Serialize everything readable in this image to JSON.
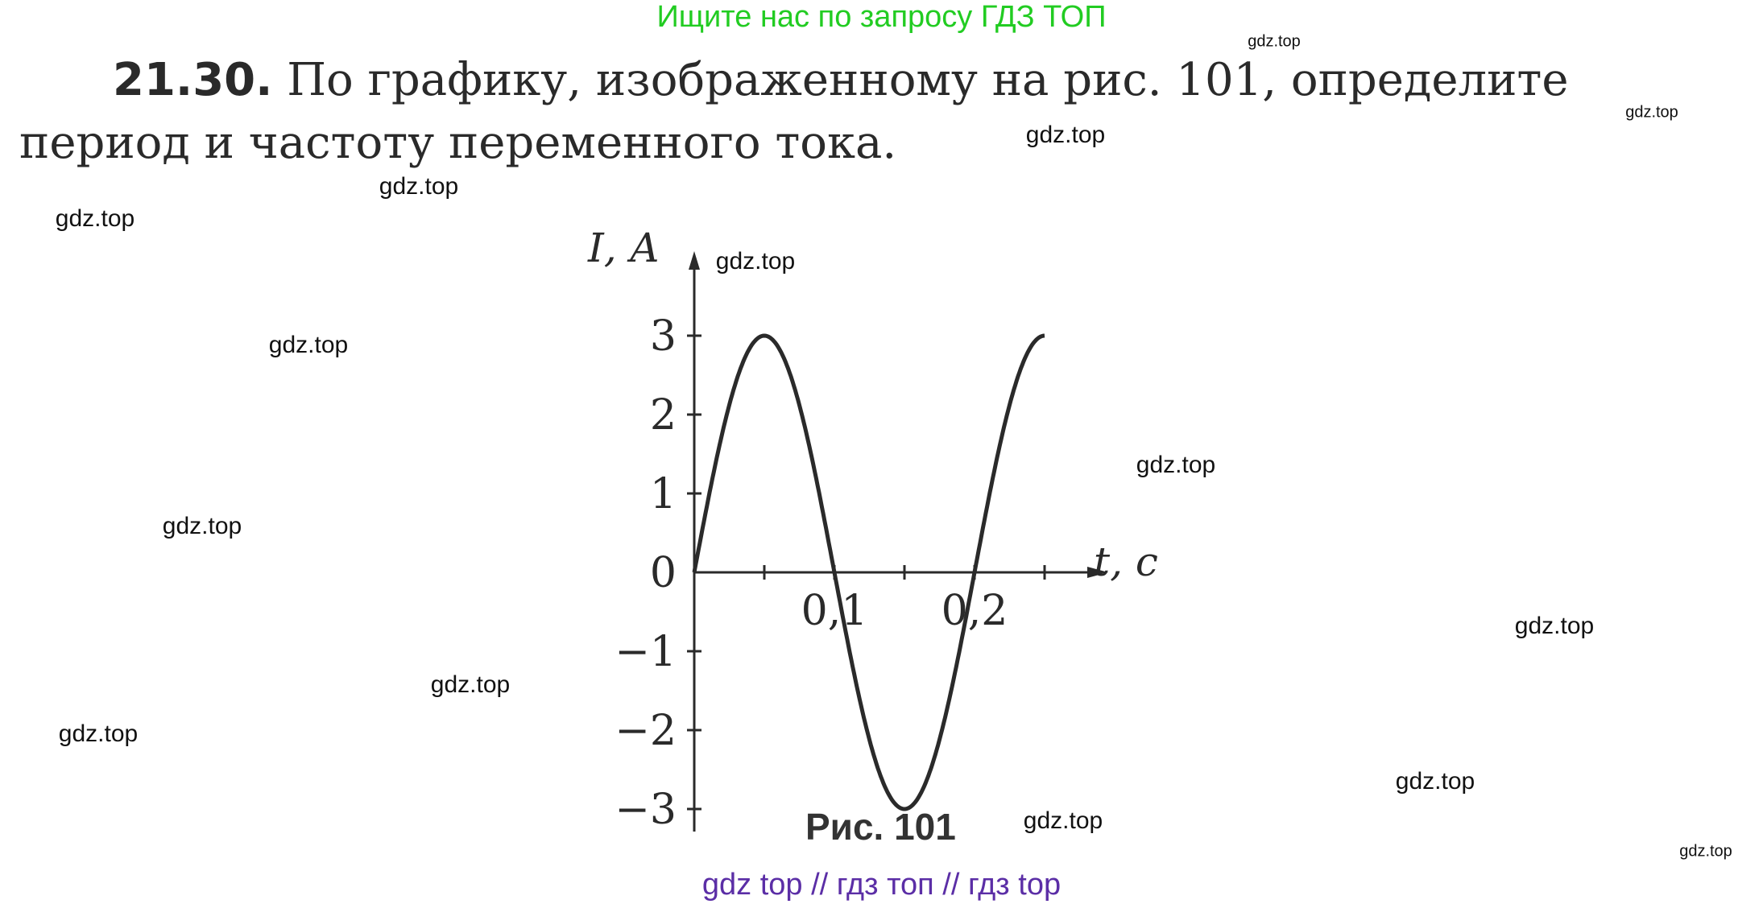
{
  "header_note": "Ищите нас по запросу ГДЗ ТОП",
  "problem": {
    "number": "21.30.",
    "line1": "По графику, изображенному на рис. 101, определите",
    "line2": "период и частоту переменного тока."
  },
  "figure_caption": "Рис. 101",
  "footer": "gdz top  //  гдз топ  //  гдз top",
  "watermark": "gdz.top",
  "colors": {
    "header": "#22cc22",
    "footer": "#5b2ea6",
    "curve": "#2a2a2a"
  },
  "chart_data": {
    "type": "line",
    "xlabel": "t, с",
    "ylabel": "I, А",
    "xlim": [
      0,
      0.25
    ],
    "ylim": [
      -3,
      3
    ],
    "x_ticks": [
      0.05,
      0.1,
      0.15,
      0.2,
      0.25
    ],
    "x_tick_labels": [
      "0,1",
      "0,2"
    ],
    "x_tick_label_values": [
      0.1,
      0.2
    ],
    "y_ticks": [
      3,
      2,
      1,
      0,
      -1,
      -2,
      -3
    ],
    "y_tick_labels": [
      "3",
      "2",
      "1",
      "0",
      "−1",
      "−2",
      "−3"
    ],
    "series": [
      {
        "function": "I = 3 sin(2πt / 0.2)",
        "amplitude": 3,
        "period": 0.2,
        "x_range": [
          0,
          0.25
        ]
      }
    ],
    "grid": false
  }
}
